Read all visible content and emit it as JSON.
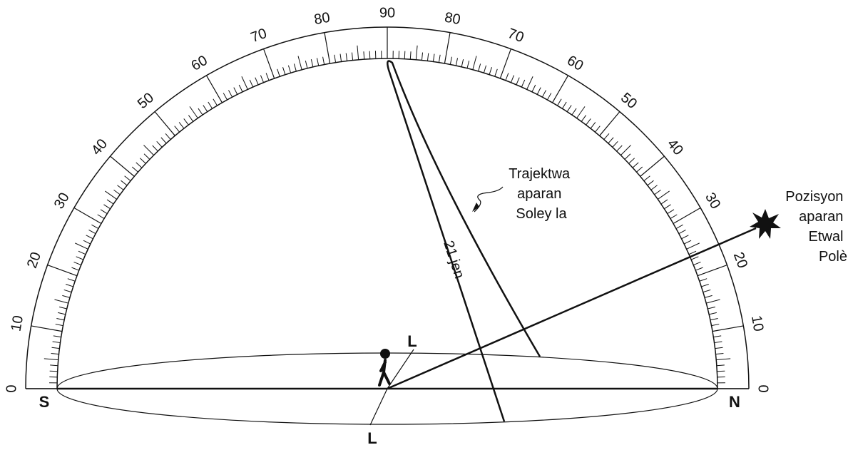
{
  "scale_left": [
    0,
    10,
    20,
    30,
    40,
    50,
    60,
    70,
    80,
    90
  ],
  "scale_right": [
    80,
    70,
    60,
    50,
    40,
    30,
    20,
    10,
    0
  ],
  "labels": {
    "south": "S",
    "north": "N",
    "east": "L",
    "west": "L"
  },
  "sun_path": [
    "Trajektwa",
    "aparan",
    "Soley la"
  ],
  "date": "21 jen",
  "polaris": [
    "Pozisyon",
    "aparan",
    "Etwal",
    "Polè"
  ]
}
